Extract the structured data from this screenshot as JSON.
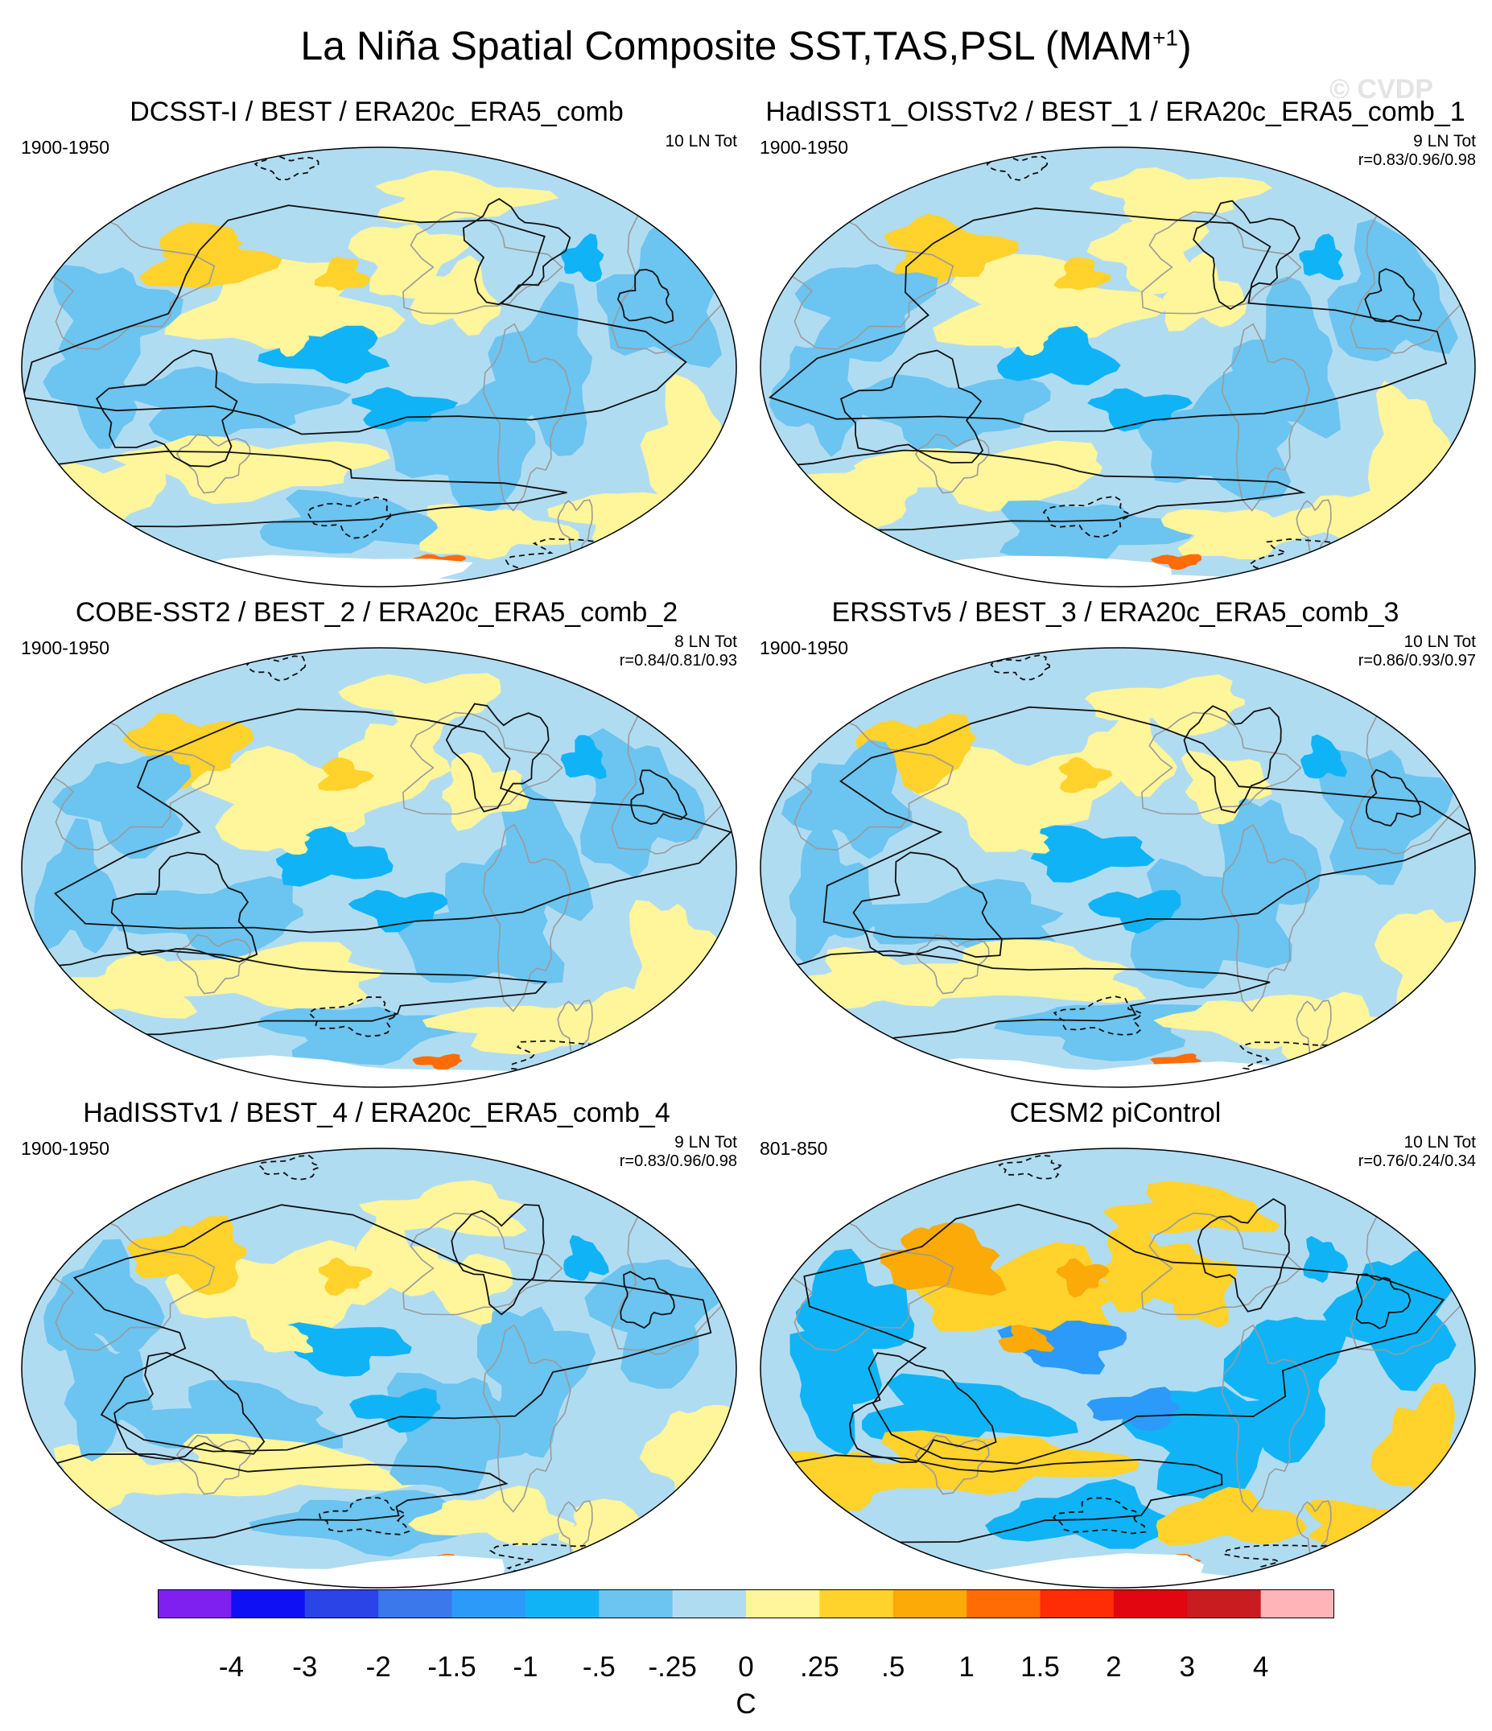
{
  "title": {
    "main": "La Niña Spatial Composite SST,TAS,PSL (MAM",
    "sup": "+1",
    "close": ")"
  },
  "watermark": "© CVDP",
  "panels": [
    {
      "title": "DCSST-I / BEST / ERA20c_ERA5_comb",
      "period": "1900-1950",
      "count": "10 LN Tot",
      "corr": "",
      "variant": 0
    },
    {
      "title": "HadISST1_OISSTv2 / BEST_1 / ERA20c_ERA5_comb_1",
      "period": "1900-1950",
      "count": "9 LN Tot",
      "corr": "r=0.83/0.96/0.98",
      "variant": 1
    },
    {
      "title": "COBE-SST2 / BEST_2 / ERA20c_ERA5_comb_2",
      "period": "1900-1950",
      "count": "8 LN Tot",
      "corr": "r=0.84/0.81/0.93",
      "variant": 2
    },
    {
      "title": "ERSSTv5 / BEST_3 / ERA20c_ERA5_comb_3",
      "period": "1900-1950",
      "count": "10 LN Tot",
      "corr": "r=0.86/0.93/0.97",
      "variant": 3
    },
    {
      "title": "HadISSTv1 / BEST_4 / ERA20c_ERA5_comb_4",
      "period": "1900-1950",
      "count": "9 LN Tot",
      "corr": "r=0.83/0.96/0.98",
      "variant": 4
    },
    {
      "title": "CESM2 piControl",
      "period": "801-850",
      "count": "10 LN Tot",
      "corr": "r=0.76/0.24/0.34",
      "variant": 5
    }
  ],
  "chart_data": {
    "type": "heatmap",
    "description_type": "map panels with contour overlay",
    "colorbar": {
      "units": "C",
      "labels": [
        "-4",
        "-3",
        "-2",
        "-1.5",
        "-1",
        "-.5",
        "-.25",
        "0",
        ".25",
        ".5",
        "1",
        "1.5",
        "2",
        "3",
        "4"
      ],
      "colors": [
        "#7f1ff0",
        "#1010f5",
        "#2a44e8",
        "#3a78ec",
        "#2c9af8",
        "#10b4f6",
        "#6cc4f0",
        "#b0dcf2",
        "#fff59a",
        "#ffd22c",
        "#fcaa08",
        "#ff6c05",
        "#ff2d06",
        "#e10610",
        "#c81c20",
        "#ffb4b8"
      ]
    }
  }
}
